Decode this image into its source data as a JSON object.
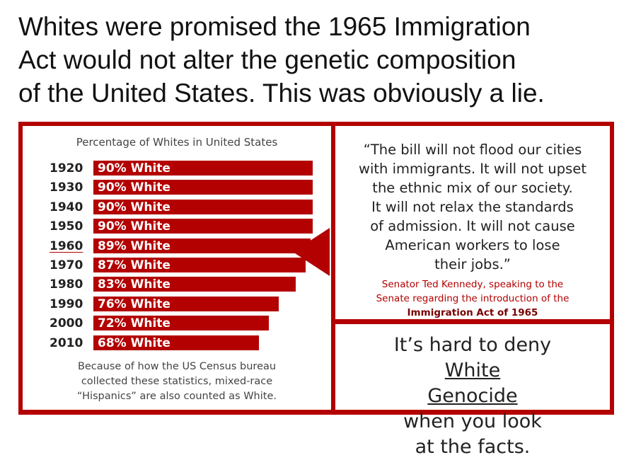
{
  "headline": {
    "lines": [
      "Whites were promised the 1965 Immigration",
      "Act would not alter the genetic composition",
      "of the United States. This was obviously a lie."
    ]
  },
  "chart_data": {
    "type": "bar",
    "title": "Percentage of Whites in United States",
    "categories": [
      "1920",
      "1930",
      "1940",
      "1950",
      "1960",
      "1970",
      "1980",
      "1990",
      "2000",
      "2010"
    ],
    "values": [
      90,
      90,
      90,
      90,
      89,
      87,
      83,
      76,
      72,
      68
    ],
    "labels": [
      "90% White",
      "90% White",
      "90% White",
      "90% White",
      "89% White",
      "87% White",
      "83% White",
      "76% White",
      "72% White",
      "68% White"
    ],
    "highlighted_category": "1960",
    "xlabel": "",
    "ylabel": "",
    "orientation": "horizontal",
    "bar_color": "#b30000",
    "grid": false
  },
  "footnote": {
    "lines": [
      "Because of how the US Census bureau",
      "collected these statistics, mixed-race",
      "“Hispanics” are also counted as White."
    ]
  },
  "quote": {
    "lines": [
      "“The bill will not flood our cities",
      "with immigrants. It will not upset",
      "the ethnic mix of our society.",
      "It will not relax the standards",
      "of admission. It will not cause",
      "American workers to lose",
      "their jobs.”"
    ],
    "attribution_lines": [
      "Senator Ted Kennedy, speaking to the",
      "Senate regarding the introduction of the"
    ],
    "act_name": "Immigration Act of 1965"
  },
  "claim": {
    "line1_prefix": "It’s hard to deny ",
    "line1_underlined": "White",
    "line2_underlined": "Genocide",
    "line2_suffix": " when you look",
    "line3": "at the facts."
  },
  "colors": {
    "accent": "#b30000",
    "text": "#222222"
  }
}
